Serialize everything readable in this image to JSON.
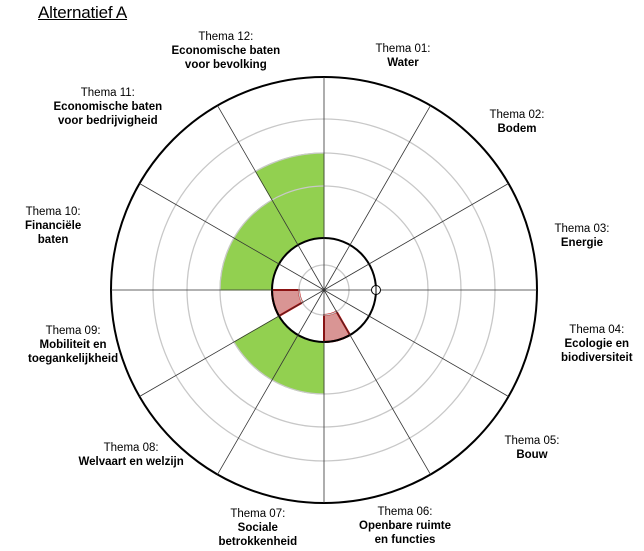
{
  "chart_data": {
    "type": "radar-sector",
    "title": "Alternatief A",
    "sectors": 12,
    "rings": 5,
    "themes": [
      {
        "num": "Thema 01:",
        "name": "Water"
      },
      {
        "num": "Thema 02:",
        "name": "Bodem"
      },
      {
        "num": "Thema 03:",
        "name": "Energie"
      },
      {
        "num": "Thema 04:",
        "name": "Ecologie en\nbiodiversiteit"
      },
      {
        "num": "Thema 05:",
        "name": "Bouw"
      },
      {
        "num": "Thema 06:",
        "name": "Openbare ruimte\nen functies"
      },
      {
        "num": "Thema 07:",
        "name": "Sociale\nbetrokkenheid"
      },
      {
        "num": "Thema 08:",
        "name": "Welvaart en welzijn"
      },
      {
        "num": "Thema 09:",
        "name": "Mobiliteit en\ntoegankelijkheid"
      },
      {
        "num": "Thema 10:",
        "name": "Financiële\nbaten"
      },
      {
        "num": "Thema 11:",
        "name": "Economische baten\nvoor bedrijvigheid"
      },
      {
        "num": "Thema 12:",
        "name": "Economische baten\nvoor bevolking"
      }
    ],
    "baseline_ring": 2,
    "bands": [
      {
        "theme": 6,
        "from": 1,
        "to": 2,
        "color": "#d99594",
        "edge": "#c00000"
      },
      {
        "theme": 7,
        "from": 2,
        "to": 3,
        "color": "#92d050",
        "edge": "#92d050"
      },
      {
        "theme": 8,
        "from": 2,
        "to": 3,
        "color": "#92d050",
        "edge": "#92d050"
      },
      {
        "theme": 9,
        "from": 1,
        "to": 2,
        "color": "#d99594",
        "edge": "#c00000"
      },
      {
        "theme": 10,
        "from": 2,
        "to": 3,
        "color": "#92d050",
        "edge": "#92d050"
      },
      {
        "theme": 11,
        "from": 2,
        "to": 3,
        "color": "#92d050",
        "edge": "#92d050"
      },
      {
        "theme": 12,
        "from": 2,
        "to": 4,
        "color": "#92d050",
        "edge": "#92d050"
      }
    ]
  }
}
